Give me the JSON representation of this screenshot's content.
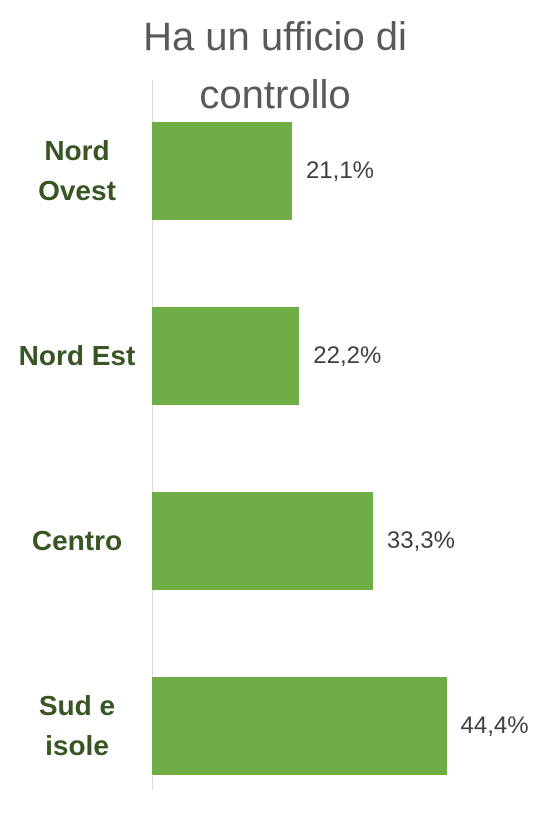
{
  "chart_data": {
    "type": "bar",
    "orientation": "horizontal",
    "title": "Ha un ufficio di controllo",
    "categories": [
      "Nord Ovest",
      "Nord Est",
      "Centro",
      "Sud e isole"
    ],
    "values": [
      21.1,
      22.2,
      33.3,
      44.4
    ],
    "value_labels": [
      "21,1%",
      "22,2%",
      "33,3%",
      "44,4%"
    ],
    "color": "#70ad47",
    "xlim": [
      0,
      60
    ]
  }
}
